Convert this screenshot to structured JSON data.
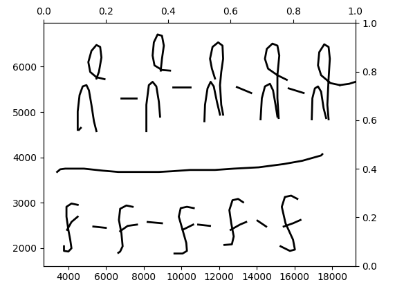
{
  "chart_data": [
    {
      "type": "line",
      "xlim": [
        2680,
        19230
      ],
      "ylim": [
        1610,
        6960
      ],
      "xticks": [
        4000,
        6000,
        8000,
        10000,
        12000,
        14000,
        16000,
        18000
      ],
      "yticks": [
        2000,
        3000,
        4000,
        5000,
        6000
      ],
      "series": [
        {
          "color": "#000000",
          "x": [
            5920,
            5490,
            5159,
            5060,
            5225,
            5490,
            5689,
            5755,
            5622,
            5490
          ],
          "values": [
            5725,
            5768,
            5884,
            6101,
            6348,
            6478,
            6435,
            6203,
            5884,
            5739
          ]
        },
        {
          "color": "#000000",
          "x": [
            4497,
            4497,
            4596,
            4762,
            4960,
            5093,
            5225,
            5358,
            5490
          ],
          "values": [
            4608,
            5014,
            5376,
            5565,
            5594,
            5478,
            5159,
            4796,
            4579
          ]
        },
        {
          "color": "#000000",
          "x": [
            4563,
            4662
          ],
          "values": [
            4608,
            4651
          ]
        },
        {
          "color": "#000000",
          "x": [
            6814,
            7608
          ],
          "values": [
            5304,
            5304
          ]
        },
        {
          "color": "#000000",
          "x": [
            9396,
            8966,
            8568,
            8469,
            8535,
            8734,
            8966,
            9065,
            8966,
            8899
          ],
          "values": [
            5913,
            5927,
            6029,
            6246,
            6536,
            6710,
            6681,
            6464,
            6174,
            5913
          ]
        },
        {
          "color": "#000000",
          "x": [
            8138,
            8138,
            8270,
            8469,
            8668,
            8800,
            8866
          ],
          "values": [
            4579,
            5159,
            5594,
            5666,
            5565,
            5231,
            4898
          ]
        },
        {
          "color": "#000000",
          "x": [
            9561,
            10455
          ],
          "values": [
            5551,
            5551
          ]
        },
        {
          "color": "#000000",
          "x": [
            11779,
            11614,
            11514,
            11647,
            11945,
            12176,
            12209,
            12110,
            12044,
            12110,
            12209
          ],
          "values": [
            5739,
            5956,
            6174,
            6435,
            6536,
            6464,
            6174,
            5884,
            5594,
            5159,
            4942
          ]
        },
        {
          "color": "#000000",
          "x": [
            11216,
            11249,
            11382,
            11547,
            11713,
            11878,
            12044
          ],
          "values": [
            4796,
            5159,
            5522,
            5666,
            5565,
            5231,
            4942
          ]
        },
        {
          "color": "#000000",
          "x": [
            12938,
            13699
          ],
          "values": [
            5551,
            5420
          ]
        },
        {
          "color": "#000000",
          "x": [
            15586,
            15089,
            14593,
            14427,
            14526,
            14824,
            15089,
            15188,
            15089,
            15089,
            15155
          ],
          "values": [
            5710,
            5812,
            5956,
            6174,
            6392,
            6508,
            6464,
            6246,
            5812,
            5304,
            4869
          ]
        },
        {
          "color": "#000000",
          "x": [
            14195,
            14262,
            14427,
            14692,
            14857,
            14990,
            15089
          ],
          "values": [
            4840,
            5304,
            5565,
            5623,
            5478,
            5159,
            4898
          ]
        },
        {
          "color": "#000000",
          "x": [
            15685,
            16479
          ],
          "values": [
            5522,
            5420
          ]
        },
        {
          "color": "#000000",
          "x": [
            18399,
            17903,
            17406,
            17241,
            17307,
            17572,
            17803,
            17869,
            17803,
            17737,
            17803
          ],
          "values": [
            5594,
            5638,
            5812,
            6029,
            6319,
            6493,
            6435,
            6174,
            5739,
            5159,
            4840
          ]
        },
        {
          "color": "#000000",
          "x": [
            18399,
            18896,
            19227
          ],
          "values": [
            5594,
            5623,
            5666
          ]
        },
        {
          "color": "#000000",
          "x": [
            16910,
            16943,
            17075,
            17241,
            17406,
            17538,
            17671
          ],
          "values": [
            4840,
            5304,
            5522,
            5565,
            5449,
            5087,
            4869
          ]
        },
        {
          "color": "#000000",
          "x": [
            3405,
            3570,
            3835,
            4828,
            5821,
            6649,
            7476,
            8800,
            9462,
            10455,
            11779,
            12772,
            14096,
            15420,
            16413,
            17406,
            17472
          ],
          "values": [
            3680,
            3738,
            3753,
            3753,
            3709,
            3680,
            3680,
            3680,
            3695,
            3724,
            3724,
            3753,
            3782,
            3854,
            3927,
            4043,
            4072
          ]
        },
        {
          "color": "#000000",
          "x": [
            4497,
            4166,
            3901,
            3901,
            4001,
            4100,
            4166,
            4001,
            3769,
            3769
          ],
          "values": [
            2955,
            2984,
            2912,
            2694,
            2404,
            2187,
            1998,
            1926,
            1940,
            2042
          ]
        },
        {
          "color": "#000000",
          "x": [
            3934,
            4166,
            4497
          ],
          "values": [
            2404,
            2578,
            2694
          ]
        },
        {
          "color": "#000000",
          "x": [
            5325,
            5987
          ],
          "values": [
            2477,
            2448
          ]
        },
        {
          "color": "#000000",
          "x": [
            7410,
            7079,
            6748,
            6682,
            6814,
            6880,
            6748,
            6649
          ],
          "values": [
            2912,
            2941,
            2868,
            2622,
            2332,
            2042,
            1926,
            1897
          ]
        },
        {
          "color": "#000000",
          "x": [
            6748,
            7145,
            7642
          ],
          "values": [
            2375,
            2491,
            2520
          ]
        },
        {
          "color": "#000000",
          "x": [
            8204,
            8966
          ],
          "values": [
            2578,
            2549
          ]
        },
        {
          "color": "#000000",
          "x": [
            10654,
            10290,
            9959,
            9859,
            10058,
            10256,
            10290,
            10058,
            9628
          ],
          "values": [
            2883,
            2912,
            2883,
            2694,
            2404,
            2114,
            1940,
            1882,
            1882
          ]
        },
        {
          "color": "#000000",
          "x": [
            10058,
            10621
          ],
          "values": [
            2404,
            2520
          ]
        },
        {
          "color": "#000000",
          "x": [
            10885,
            11514
          ],
          "values": [
            2520,
            2491
          ]
        },
        {
          "color": "#000000",
          "x": [
            13269,
            13004,
            12706,
            12540,
            12640,
            12772,
            12673,
            12276
          ],
          "values": [
            3013,
            3086,
            3057,
            2839,
            2549,
            2259,
            2085,
            2071
          ]
        },
        {
          "color": "#000000",
          "x": [
            12607,
            13103,
            13434
          ],
          "values": [
            2404,
            2520,
            2578
          ]
        },
        {
          "color": "#000000",
          "x": [
            14030,
            14493
          ],
          "values": [
            2607,
            2477
          ]
        },
        {
          "color": "#000000",
          "x": [
            16148,
            15817,
            15486,
            15321,
            15519,
            15917,
            16016,
            15751,
            15255
          ],
          "values": [
            3086,
            3158,
            3129,
            2912,
            2549,
            2187,
            1969,
            1940,
            2042
          ]
        },
        {
          "color": "#000000",
          "x": [
            15420,
            15917,
            16314
          ],
          "values": [
            2477,
            2549,
            2622
          ]
        }
      ]
    },
    {
      "type": "empty",
      "xlim": [
        0.0,
        1.0
      ],
      "ylim": [
        0.0,
        1.0
      ],
      "xticks": [
        0.0,
        0.2,
        0.4,
        0.6,
        0.8,
        1.0
      ],
      "yticks": [
        0.0,
        0.2,
        0.4,
        0.6,
        0.8,
        1.0
      ]
    }
  ]
}
